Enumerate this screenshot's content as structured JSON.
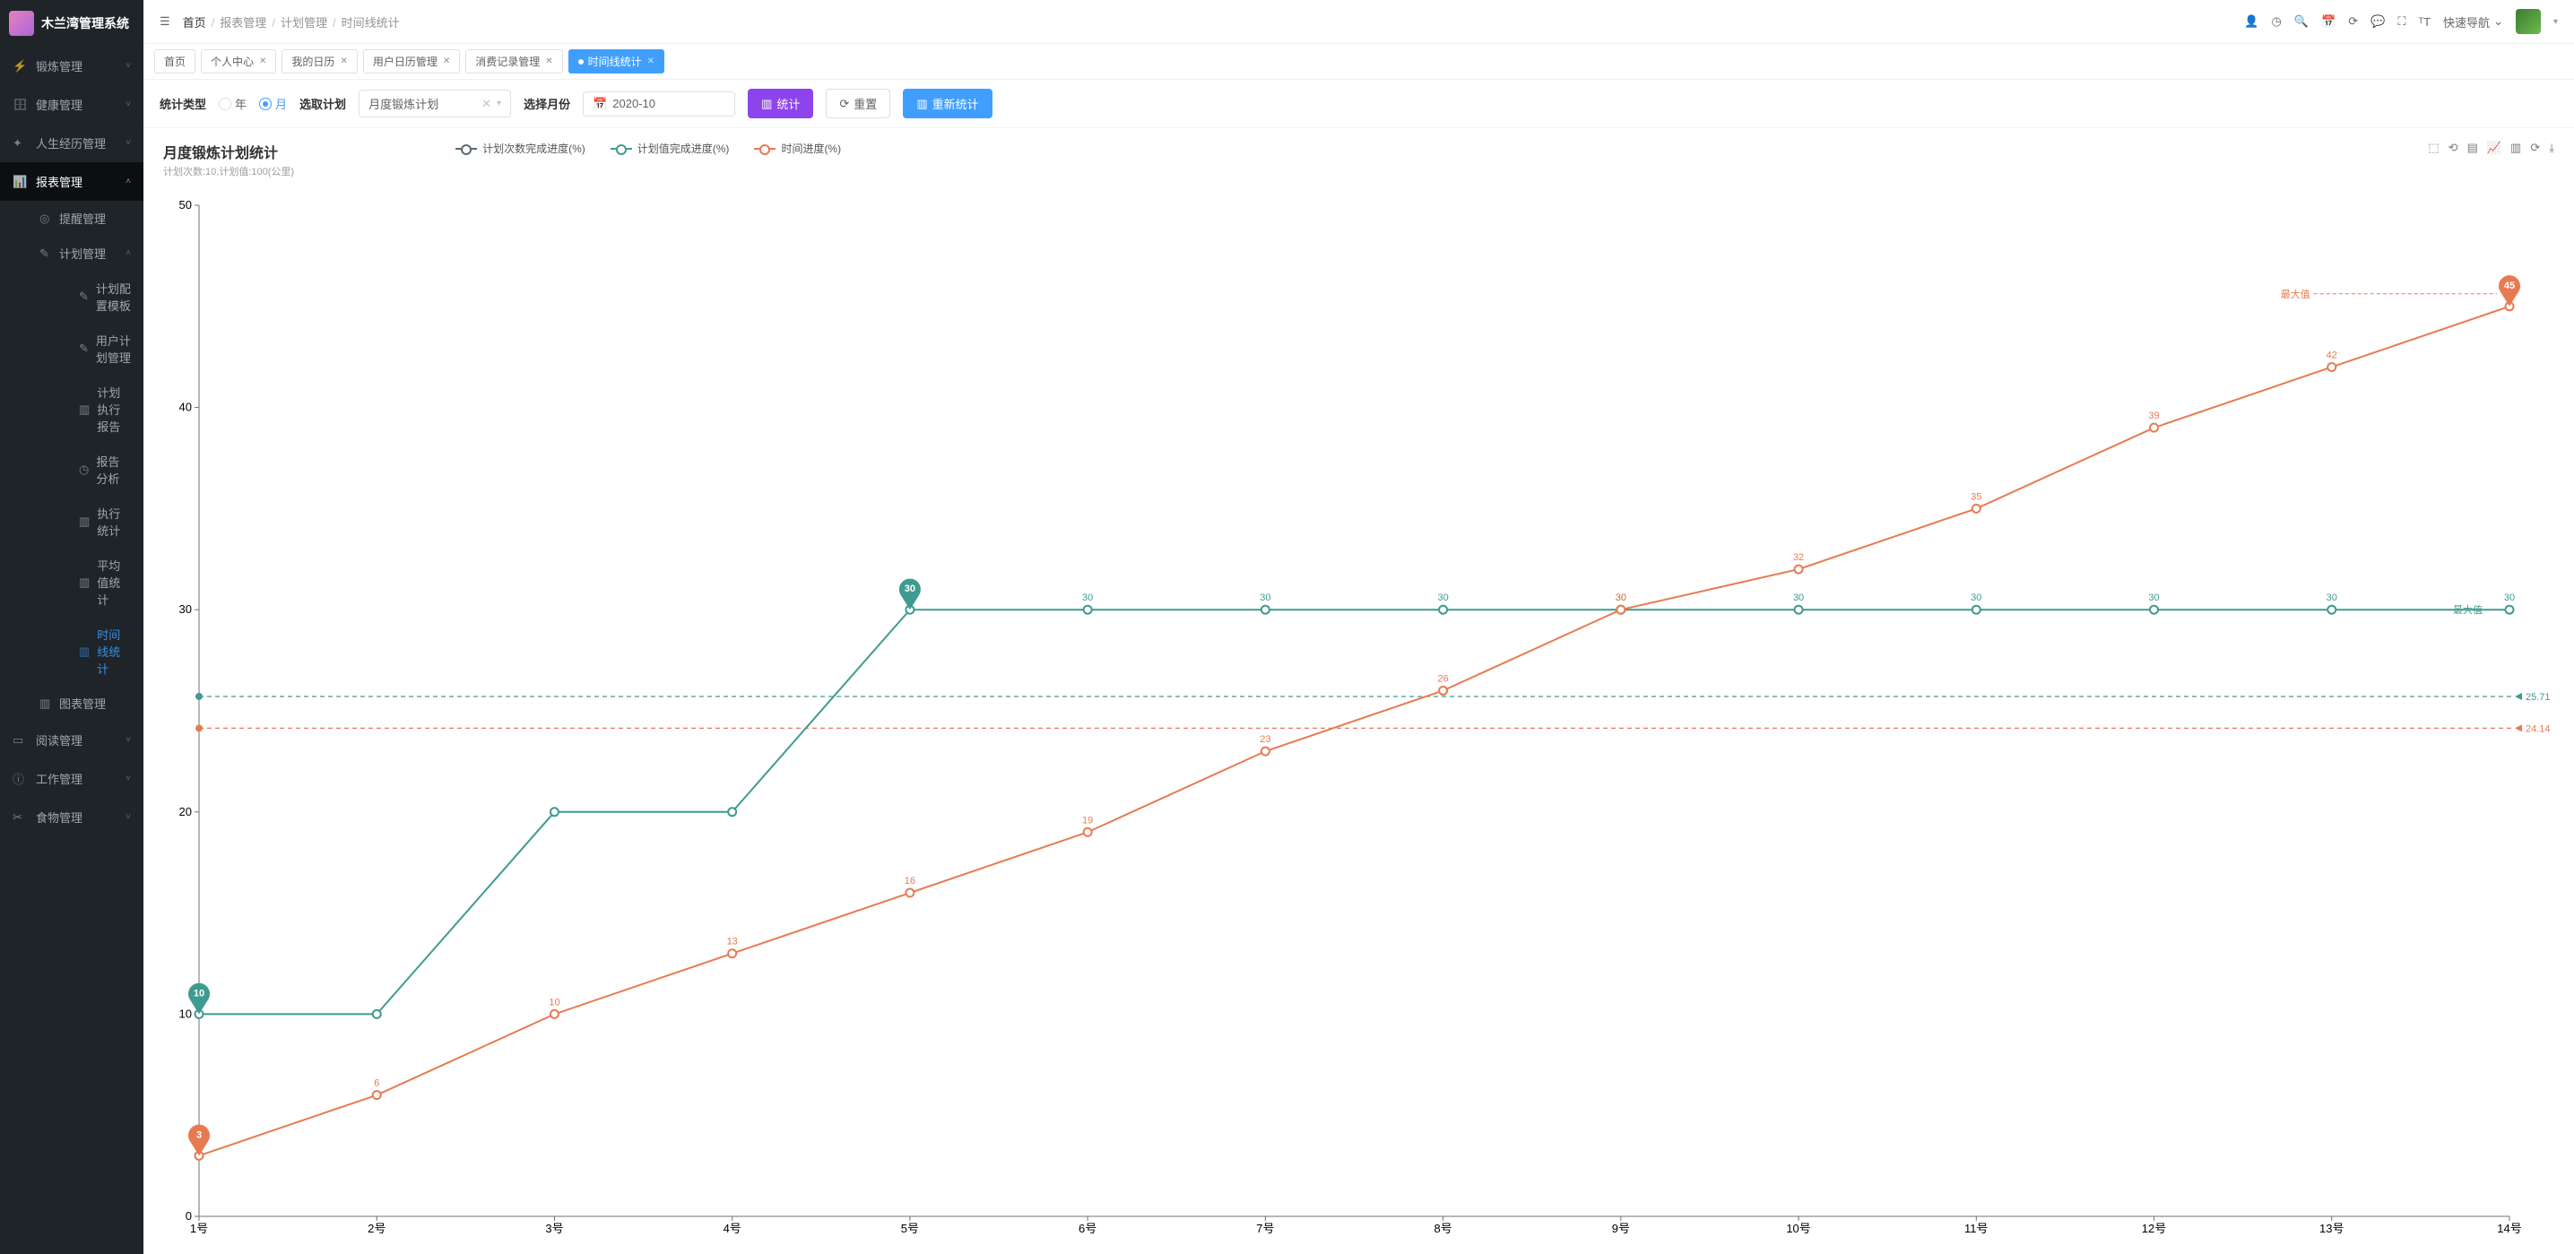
{
  "app": {
    "name": "木兰湾管理系统"
  },
  "sidebar": {
    "items": [
      {
        "label": "锻炼管理",
        "icon": "flame"
      },
      {
        "label": "健康管理",
        "icon": "briefcase"
      },
      {
        "label": "人生经历管理",
        "icon": "network"
      },
      {
        "label": "报表管理",
        "icon": "chart",
        "expanded": true,
        "children": [
          {
            "label": "提醒管理",
            "icon": "circle"
          },
          {
            "label": "计划管理",
            "icon": "edit",
            "expanded": true,
            "children": [
              {
                "label": "计划配置模板",
                "icon": "edit"
              },
              {
                "label": "用户计划管理",
                "icon": "edit"
              },
              {
                "label": "计划执行报告",
                "icon": "bars"
              },
              {
                "label": "报告分析",
                "icon": "clock"
              },
              {
                "label": "执行统计",
                "icon": "bars"
              },
              {
                "label": "平均值统计",
                "icon": "bars"
              },
              {
                "label": "时间线统计",
                "icon": "bars",
                "highlight": true
              }
            ]
          },
          {
            "label": "图表管理",
            "icon": "bars"
          }
        ]
      },
      {
        "label": "阅读管理",
        "icon": "book"
      },
      {
        "label": "工作管理",
        "icon": "avatar"
      },
      {
        "label": "食物管理",
        "icon": "fork"
      }
    ]
  },
  "breadcrumb": {
    "items": [
      "首页",
      "报表管理",
      "计划管理",
      "时间线统计"
    ]
  },
  "topbar": {
    "quick_nav": "快速导航"
  },
  "tabs": {
    "items": [
      {
        "label": "首页",
        "closable": false
      },
      {
        "label": "个人中心",
        "closable": true
      },
      {
        "label": "我的日历",
        "closable": true
      },
      {
        "label": "用户日历管理",
        "closable": true
      },
      {
        "label": "消费记录管理",
        "closable": true
      },
      {
        "label": "时间线统计",
        "closable": true,
        "active": true
      }
    ]
  },
  "filters": {
    "type_label": "统计类型",
    "radio_year": "年",
    "radio_month": "月",
    "radio_selected": "month",
    "plan_label": "选取计划",
    "plan_value": "月度锻炼计划",
    "month_label": "选择月份",
    "month_value": "2020-10",
    "btn_stat": "统计",
    "btn_reset": "重置",
    "btn_restat": "重新统计"
  },
  "chart": {
    "title": "月度锻炼计划统计",
    "subtitle": "计划次数:10,计划值:100(公里)",
    "colors": {
      "series1_count": "#5a6872",
      "series2_value": "#3f9b8f",
      "series3_time": "#e87a52",
      "axis": "#6e7074",
      "text": "#6b6f75",
      "ref_teal": "#3f9b8f",
      "ref_orange": "#e87a52",
      "highlight_pin": "#e87a52",
      "teal_pin": "#3f9b8f"
    },
    "legend": [
      {
        "name": "计划次数完成进度(%)",
        "colorKey": "series1_count"
      },
      {
        "name": "计划值完成进度(%)",
        "colorKey": "series2_value"
      },
      {
        "name": "时间进度(%)",
        "colorKey": "series3_time"
      }
    ],
    "x_categories": [
      "1号",
      "2号",
      "3号",
      "4号",
      "5号",
      "6号",
      "7号",
      "8号",
      "9号",
      "10号",
      "11号",
      "12号",
      "13号",
      "14号"
    ],
    "y": {
      "min": 0,
      "max": 50,
      "step": 10
    },
    "series": {
      "value": [
        10,
        10,
        20,
        20,
        30,
        30,
        30,
        30,
        30,
        30,
        30,
        30,
        30,
        30
      ],
      "time": [
        3,
        6,
        10,
        13,
        16,
        19,
        23,
        26,
        30,
        32,
        35,
        39,
        42,
        45
      ]
    },
    "value_labels_from_index": 5,
    "pins": [
      {
        "series": "value",
        "index": 0,
        "text": "10",
        "colorKey": "teal_pin"
      },
      {
        "series": "value",
        "index": 4,
        "text": "30",
        "colorKey": "teal_pin"
      },
      {
        "series": "time",
        "index": 0,
        "text": "3",
        "colorKey": "highlight_pin"
      },
      {
        "series": "time",
        "index": 13,
        "text": "45",
        "colorKey": "highlight_pin"
      }
    ],
    "reflines": [
      {
        "value": 25.71,
        "label": "25.71",
        "colorKey": "ref_teal"
      },
      {
        "value": 24.14,
        "label": "24.14",
        "colorKey": "ref_orange"
      }
    ],
    "max_labels": [
      {
        "series": "value",
        "text": "最大值"
      },
      {
        "series": "time",
        "text": "最大值"
      }
    ]
  }
}
